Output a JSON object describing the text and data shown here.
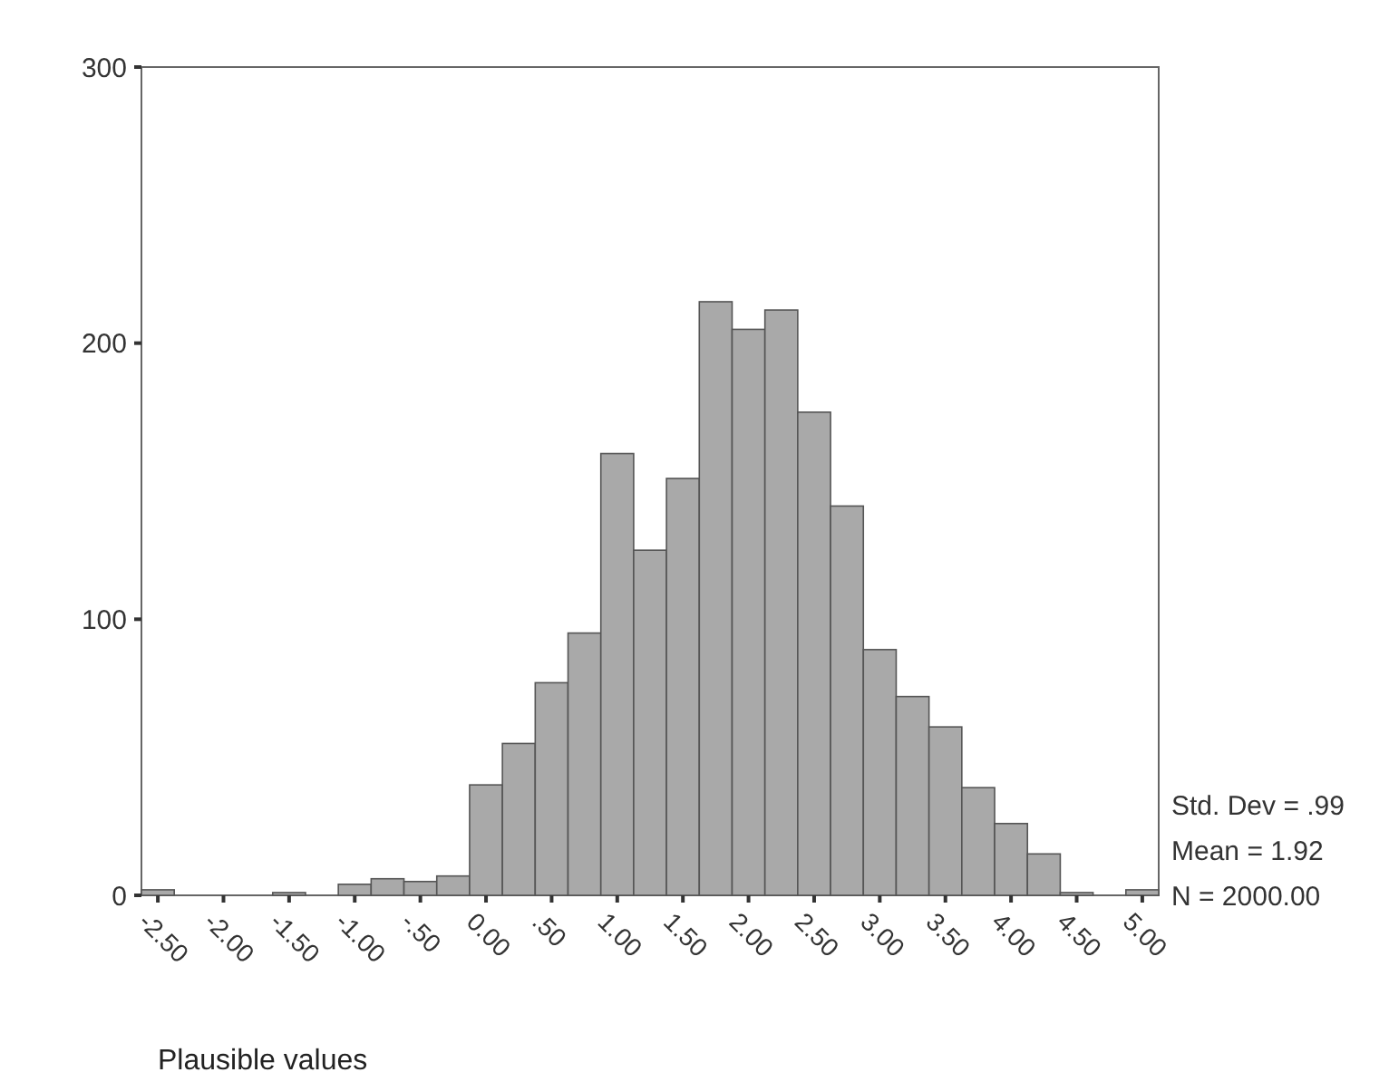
{
  "chart_data": {
    "type": "histogram",
    "xlabel": "Plausible values",
    "bins": [
      -2.625,
      -2.375,
      -2.125,
      -1.875,
      -1.625,
      -1.375,
      -1.125,
      -0.875,
      -0.625,
      -0.375,
      -0.125,
      0.125,
      0.375,
      0.625,
      0.875,
      1.125,
      1.375,
      1.625,
      1.875,
      2.125,
      2.375,
      2.625,
      2.875,
      3.125,
      3.375,
      3.625,
      3.875,
      4.125,
      4.375,
      4.625,
      4.875,
      5.125
    ],
    "values": [
      2,
      0,
      0,
      0,
      1,
      0,
      4,
      6,
      5,
      7,
      40,
      55,
      77,
      95,
      160,
      125,
      151,
      215,
      205,
      212,
      175,
      141,
      89,
      72,
      61,
      39,
      26,
      15,
      1,
      0,
      2
    ],
    "color": "#a9a9a9",
    "xlim": [
      -2.625,
      5.125
    ],
    "xticks": [
      {
        "value": -2.5,
        "label": "-2.50"
      },
      {
        "value": -2,
        "label": "-2.00"
      },
      {
        "value": -1.5,
        "label": "-1.50"
      },
      {
        "value": -1,
        "label": "-1.00"
      },
      {
        "value": -0.5,
        "label": "-.50"
      },
      {
        "value": 0,
        "label": "0.00"
      },
      {
        "value": 0.5,
        "label": ".50"
      },
      {
        "value": 1,
        "label": "1.00"
      },
      {
        "value": 1.5,
        "label": "1.50"
      },
      {
        "value": 2,
        "label": "2.00"
      },
      {
        "value": 2.5,
        "label": "2.50"
      },
      {
        "value": 3,
        "label": "3.00"
      },
      {
        "value": 3.5,
        "label": "3.50"
      },
      {
        "value": 4,
        "label": "4.00"
      },
      {
        "value": 4.5,
        "label": "4.50"
      },
      {
        "value": 5,
        "label": "5.00"
      }
    ],
    "ylim": [
      0,
      300
    ],
    "yticks": [
      0,
      100,
      200,
      300
    ],
    "grid": false,
    "annotations": [
      "Std. Dev = .99",
      "Mean = 1.92",
      "N = 2000.00"
    ]
  }
}
